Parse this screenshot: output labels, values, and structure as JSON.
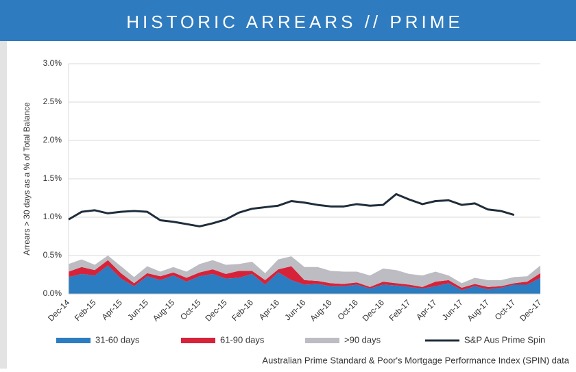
{
  "chart_data": {
    "type": "area",
    "stacked": true,
    "title": "HISTORIC ARREARS // PRIME",
    "y_label": "Arrears > 30 days as a % of Total Balance",
    "source": "Australian Prime Standard & Poor's Mortgage Performance Index (SPIN) data",
    "categories": [
      "Dec-14",
      null,
      "Feb-15",
      null,
      "Apr-15",
      null,
      "Jun-15",
      null,
      "Aug-15",
      null,
      "Oct-15",
      null,
      "Dec-15",
      null,
      "Feb-16",
      null,
      "Apr-16",
      null,
      "Jun-16",
      null,
      "Aug-16",
      null,
      "Oct-16",
      null,
      "Dec-16",
      null,
      "Feb-17",
      null,
      "Apr-17",
      null,
      "Jun-17",
      null,
      "Aug-17",
      null,
      "Oct-17",
      null,
      "Dec-17"
    ],
    "ylim": [
      0,
      3
    ],
    "yticks": [
      {
        "value": 0,
        "label": "0.0%"
      },
      {
        "value": 0.5,
        "label": "0.5%"
      },
      {
        "value": 1,
        "label": "1.0%"
      },
      {
        "value": 1.5,
        "label": "1.5%"
      },
      {
        "value": 2,
        "label": "2.0%"
      },
      {
        "value": 2.5,
        "label": "2.5%"
      },
      {
        "value": 3,
        "label": "3.0%"
      }
    ],
    "grid": true,
    "legend": "bottom",
    "series": [
      {
        "name": "31-60 days",
        "color": "#2b7cc0",
        "values": [
          0.22,
          0.26,
          0.24,
          0.37,
          0.2,
          0.1,
          0.23,
          0.18,
          0.24,
          0.16,
          0.23,
          0.26,
          0.2,
          0.21,
          0.26,
          0.12,
          0.28,
          0.18,
          0.12,
          0.13,
          0.1,
          0.1,
          0.12,
          0.07,
          0.12,
          0.11,
          0.09,
          0.07,
          0.1,
          0.14,
          0.05,
          0.1,
          0.06,
          0.08,
          0.12,
          0.12,
          0.21
        ]
      },
      {
        "name": "61-90 days",
        "color": "#d6233a",
        "values": [
          0.07,
          0.09,
          0.07,
          0.07,
          0.07,
          0.04,
          0.04,
          0.05,
          0.04,
          0.05,
          0.05,
          0.06,
          0.06,
          0.09,
          0.04,
          0.06,
          0.04,
          0.18,
          0.06,
          0.04,
          0.04,
          0.03,
          0.03,
          0.02,
          0.04,
          0.03,
          0.03,
          0.02,
          0.06,
          0.04,
          0.03,
          0.03,
          0.03,
          0.02,
          0.02,
          0.04,
          0.06
        ]
      },
      {
        "name": ">90 days",
        "color": "#bdbcc2",
        "values": [
          0.1,
          0.1,
          0.07,
          0.06,
          0.09,
          0.08,
          0.09,
          0.06,
          0.07,
          0.08,
          0.11,
          0.12,
          0.12,
          0.09,
          0.12,
          0.09,
          0.13,
          0.13,
          0.17,
          0.18,
          0.16,
          0.16,
          0.14,
          0.15,
          0.17,
          0.17,
          0.14,
          0.15,
          0.13,
          0.06,
          0.06,
          0.08,
          0.09,
          0.08,
          0.08,
          0.07,
          0.1
        ]
      },
      {
        "name": "S&P Aus Prime Spin",
        "type": "line",
        "color": "#1f2d3b",
        "values": [
          0.97,
          1.07,
          1.09,
          1.05,
          1.07,
          1.08,
          1.07,
          0.96,
          0.94,
          0.91,
          0.88,
          0.92,
          0.97,
          1.06,
          1.11,
          1.13,
          1.15,
          1.21,
          1.19,
          1.16,
          1.14,
          1.14,
          1.17,
          1.15,
          1.16,
          1.3,
          1.23,
          1.17,
          1.21,
          1.22,
          1.16,
          1.18,
          1.1,
          1.08,
          1.03,
          null,
          null
        ]
      }
    ]
  }
}
